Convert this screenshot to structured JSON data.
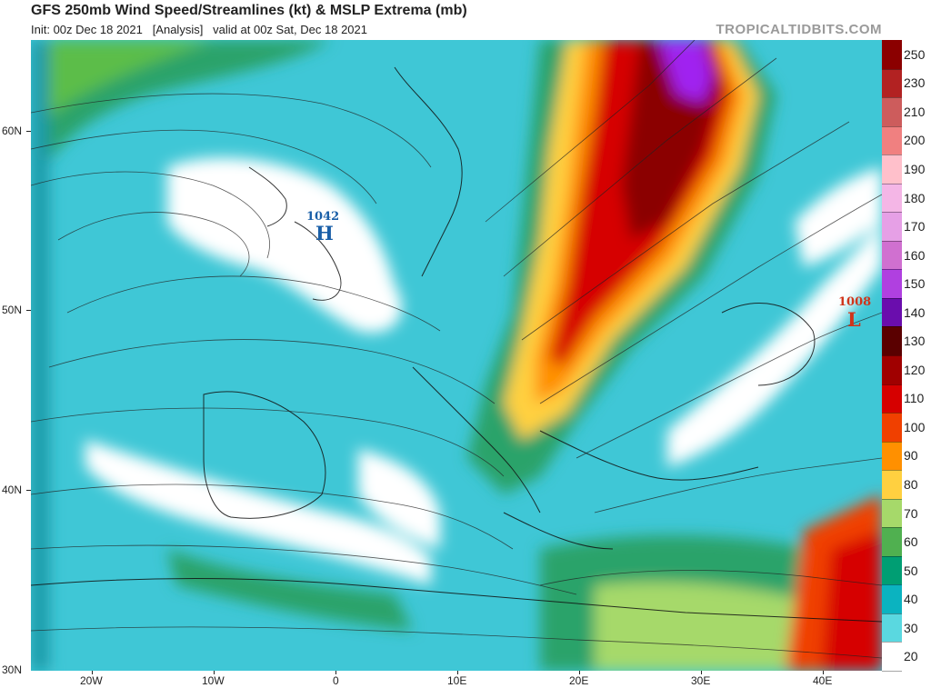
{
  "header": {
    "title": "GFS 250mb Wind Speed/Streamlines (kt) & MSLP Extrema (mb)",
    "subtitle": "Init: 00z Dec 18 2021   [Analysis]   valid at 00z Sat, Dec 18 2021",
    "brand": "TROPICALTIDBITS.COM"
  },
  "axes": {
    "lat_labels": [
      "60N",
      "50N",
      "40N",
      "30N"
    ],
    "lon_labels": [
      "20W",
      "10W",
      "0",
      "10E",
      "20E",
      "30E",
      "40E"
    ]
  },
  "colorbar": {
    "labels": [
      "250",
      "230",
      "210",
      "200",
      "190",
      "180",
      "170",
      "160",
      "150",
      "140",
      "130",
      "120",
      "110",
      "100",
      "90",
      "80",
      "70",
      "60",
      "50",
      "40",
      "30",
      "20"
    ],
    "colors": [
      "#8b0000",
      "#b22222",
      "#cd5c5c",
      "#f08080",
      "#ffc0cb",
      "#f4b6e6",
      "#e6a0e6",
      "#d070d0",
      "#b040e0",
      "#6a0dad",
      "#5a0000",
      "#a00000",
      "#d60000",
      "#f04000",
      "#ff9000",
      "#ffd040",
      "#a6d96a",
      "#50b050",
      "#009e73",
      "#0bb3c0",
      "#5ad8e0",
      "#ffffff"
    ]
  },
  "pressure_centers": [
    {
      "type": "high",
      "value": "1042",
      "letter": "H",
      "color": "#1a5fa8"
    },
    {
      "type": "low",
      "value": "1008",
      "letter": "L",
      "color": "#d0341a"
    }
  ]
}
